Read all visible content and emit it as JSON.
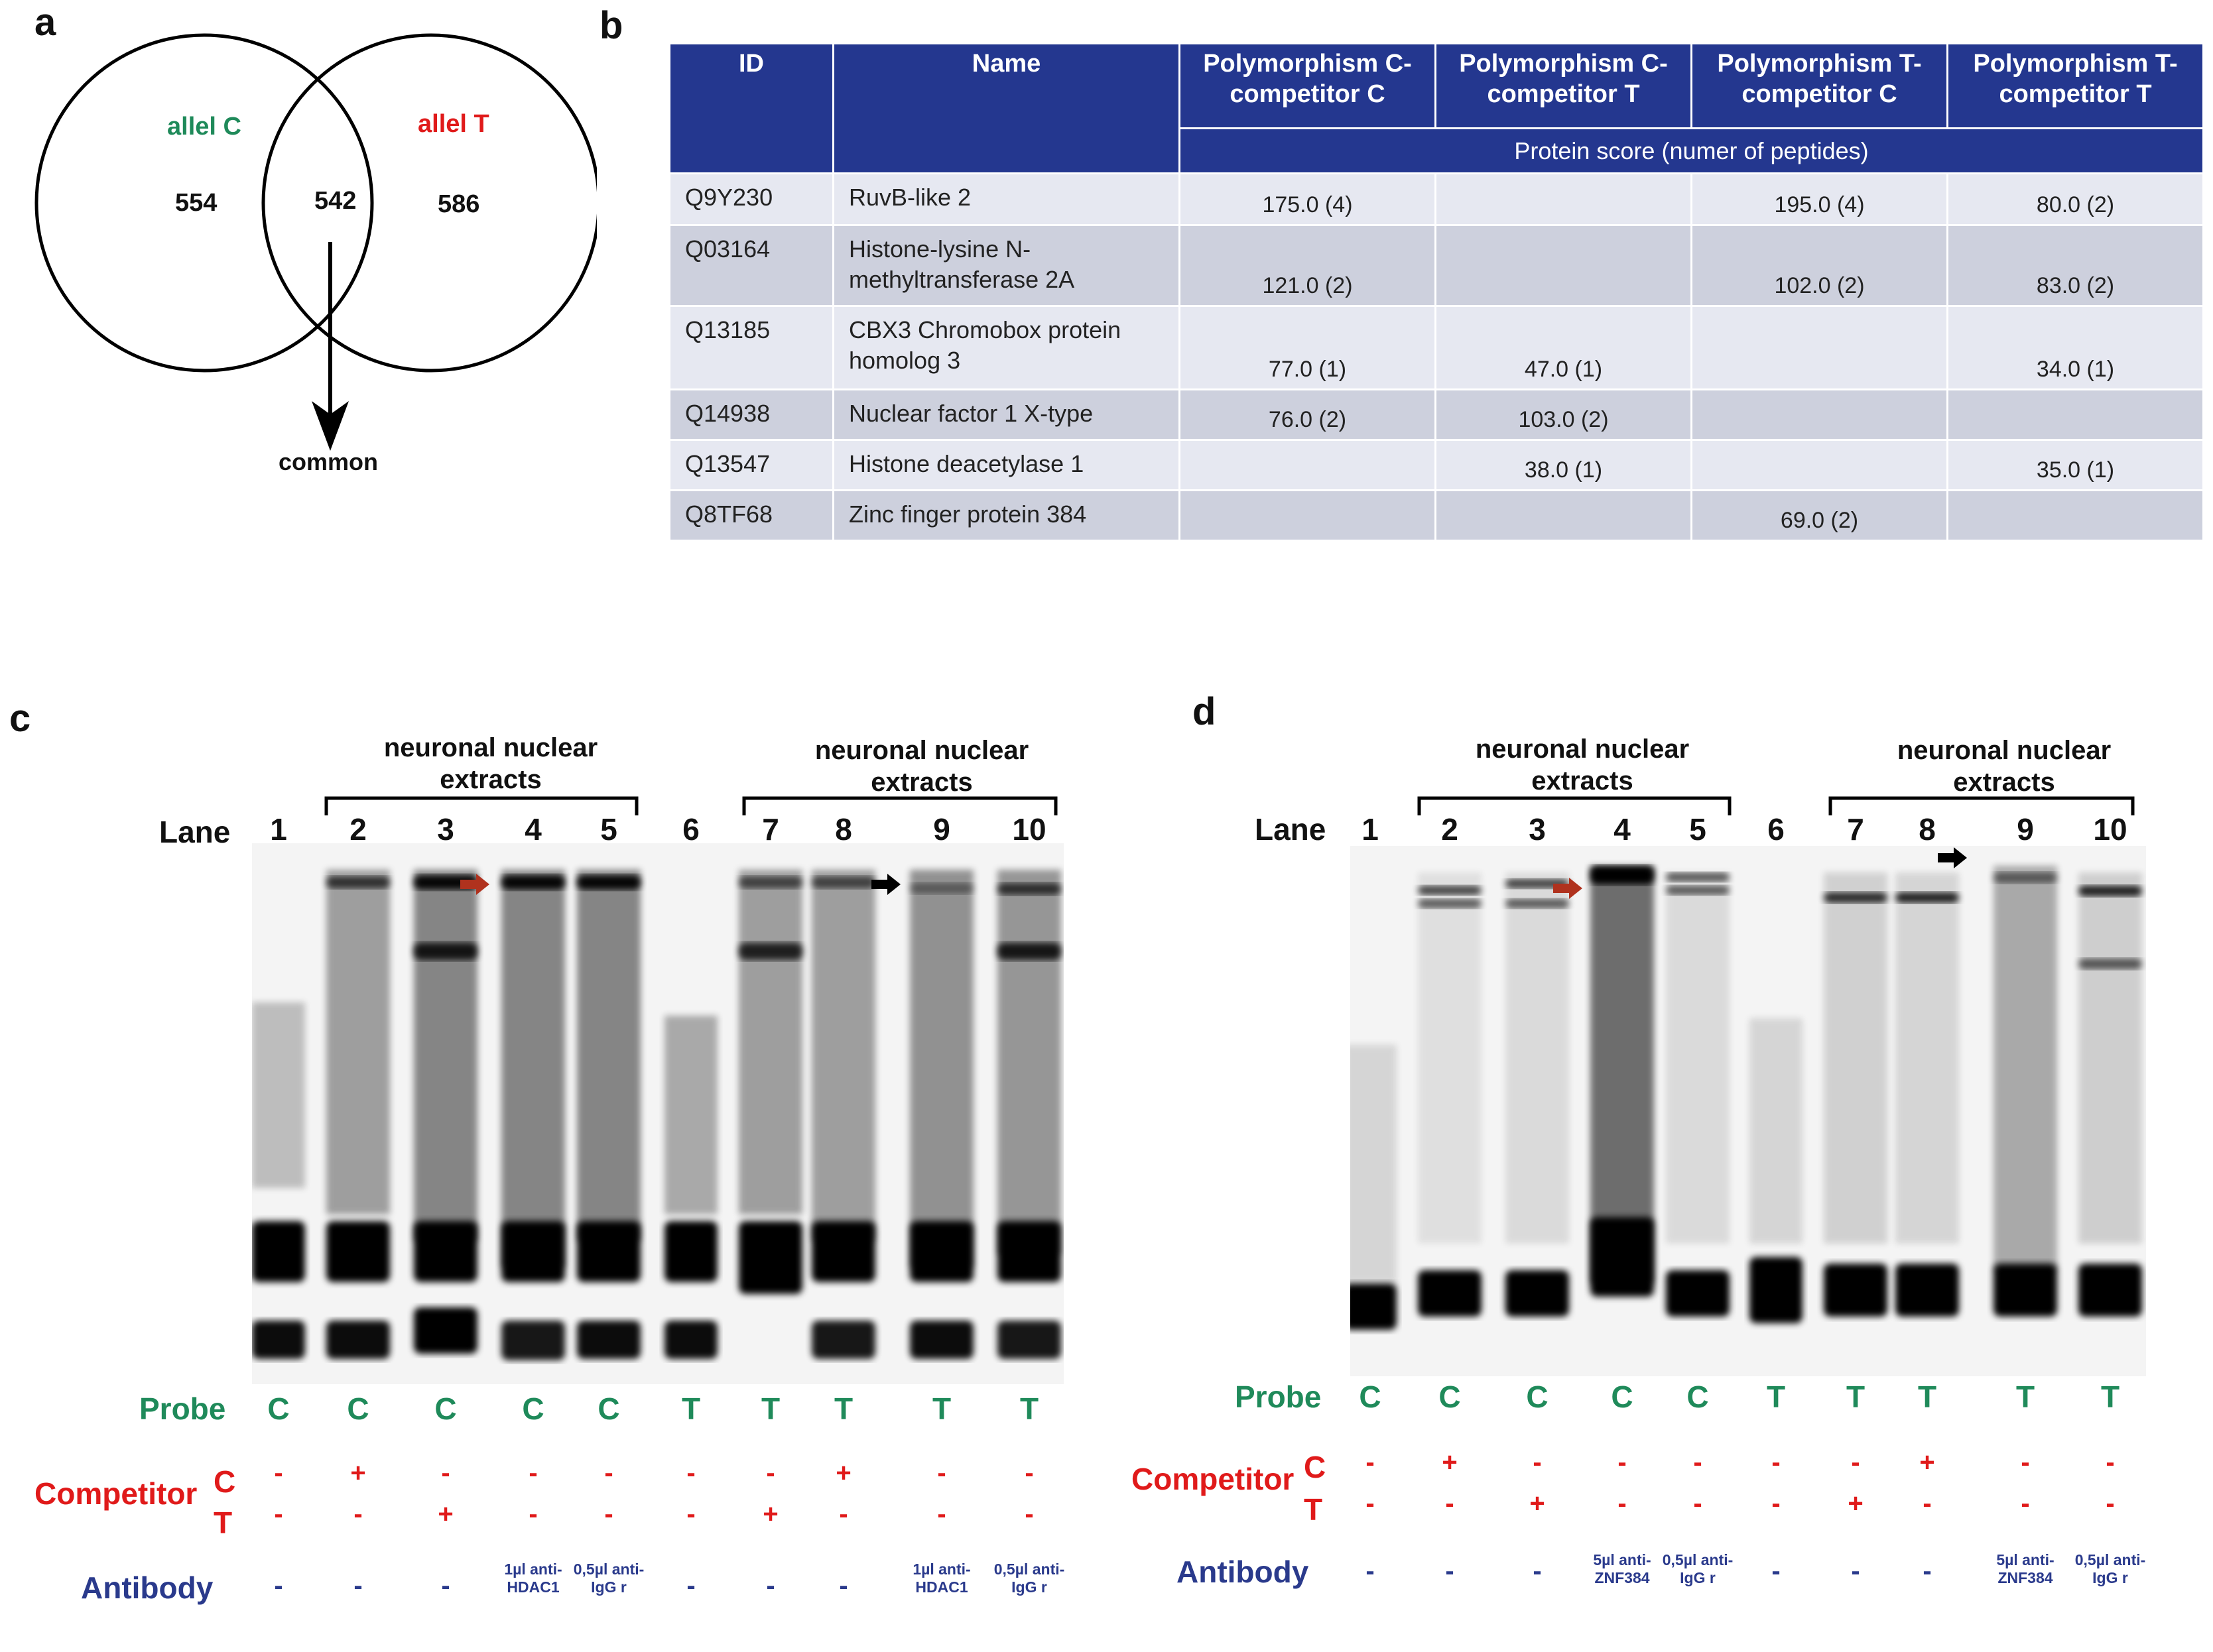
{
  "panel_a": {
    "letter": "a",
    "left_label": "allel C",
    "right_label": "allel T",
    "left_count": "554",
    "common_count": "542",
    "right_count": "586",
    "arrow_label": "common",
    "left_color": "#1f8a5a",
    "right_color": "#e01a1a"
  },
  "panel_b": {
    "letter": "b",
    "columns": [
      "ID",
      "Name",
      "Polymorphism C-competitor C",
      "Polymorphism C-competitor T",
      "Polymorphism T-competitor C",
      "Polymorphism T-competitor T"
    ],
    "subheader": "Protein score (numer of peptides)",
    "rows": [
      {
        "id": "Q9Y230",
        "name": "RuvB-like 2",
        "cc": "175.0 (4)",
        "ct": "",
        "tc": "195.0 (4)",
        "tt": "80.0 (2)"
      },
      {
        "id": "Q03164",
        "name": "Histone-lysine N-methyltransferase 2A",
        "cc": "121.0 (2)",
        "ct": "",
        "tc": "102.0 (2)",
        "tt": "83.0 (2)"
      },
      {
        "id": "Q13185",
        "name": " CBX3 Chromobox protein homolog 3",
        "cc": "77.0 (1)",
        "ct": "47.0 (1)",
        "tc": "",
        "tt": "34.0 (1)"
      },
      {
        "id": "Q14938",
        "name": "Nuclear factor 1 X-type",
        "cc": "76.0 (2)",
        "ct": "103.0 (2)",
        "tc": "",
        "tt": ""
      },
      {
        "id": "Q13547",
        "name": "Histone deacetylase 1",
        "cc": "",
        "ct": "38.0 (1)",
        "tc": "",
        "tt": "35.0 (1)"
      },
      {
        "id": "Q8TF68",
        "name": "Zinc finger protein 384",
        "cc": "",
        "ct": "",
        "tc": "69.0 (2)",
        "tt": ""
      }
    ]
  },
  "panel_c": {
    "letter": "c",
    "header_left": "neuronal nuclear extracts",
    "header_right": "neuronal nuclear extracts",
    "lane_label": "Lane",
    "lanes": [
      "1",
      "2",
      "3",
      "4",
      "5",
      "6",
      "7",
      "8",
      "9",
      "10"
    ],
    "probe_label": "Probe",
    "probe": [
      "C",
      "C",
      "C",
      "C",
      "C",
      "T",
      "T",
      "T",
      "T",
      "T"
    ],
    "competitor_label": "Competitor",
    "comp_c_label": "C",
    "comp_t_label": "T",
    "comp_c": [
      "-",
      "+",
      "-",
      "-",
      "-",
      "-",
      "-",
      "+",
      "-",
      "-"
    ],
    "comp_t": [
      "-",
      "-",
      "+",
      "-",
      "-",
      "-",
      "+",
      "-",
      "-",
      "-"
    ],
    "antibody_label": "Antibody",
    "antibody": [
      "-",
      "-",
      "-",
      "1µl anti-HDAC1",
      "0,5µl anti-IgG r",
      "-",
      "-",
      "-",
      "1µl anti-HDAC1",
      "0,5µl anti-IgG r"
    ]
  },
  "panel_d": {
    "letter": "d",
    "header_left": "neuronal nuclear extracts",
    "header_right": "neuronal nuclear extracts",
    "lane_label": "Lane",
    "lanes": [
      "1",
      "2",
      "3",
      "4",
      "5",
      "6",
      "7",
      "8",
      "9",
      "10"
    ],
    "probe_label": "Probe",
    "probe": [
      "C",
      "C",
      "C",
      "C",
      "C",
      "T",
      "T",
      "T",
      "T",
      "T"
    ],
    "competitor_label": "Competitor",
    "comp_c_label": "C",
    "comp_t_label": "T",
    "comp_c": [
      "-",
      "+",
      "-",
      "-",
      "-",
      "-",
      "-",
      "+",
      "-",
      "-"
    ],
    "comp_t": [
      "-",
      "-",
      "+",
      "-",
      "-",
      "-",
      "+",
      "-",
      "-",
      "-"
    ],
    "antibody_label": "Antibody",
    "antibody": [
      "-",
      "-",
      "-",
      "5µl anti-ZNF384",
      "0,5µl anti-IgG r",
      "-",
      "-",
      "-",
      "5µl anti-ZNF384",
      "0,5µl anti-IgG r"
    ]
  },
  "colors": {
    "probe": "#1f8a5a",
    "competitor": "#e01a1a",
    "antibody": "#2a3a8c",
    "table_header": "#24378f",
    "shift_arrow_red": "#b0321e",
    "shift_arrow_black": "#000000"
  }
}
